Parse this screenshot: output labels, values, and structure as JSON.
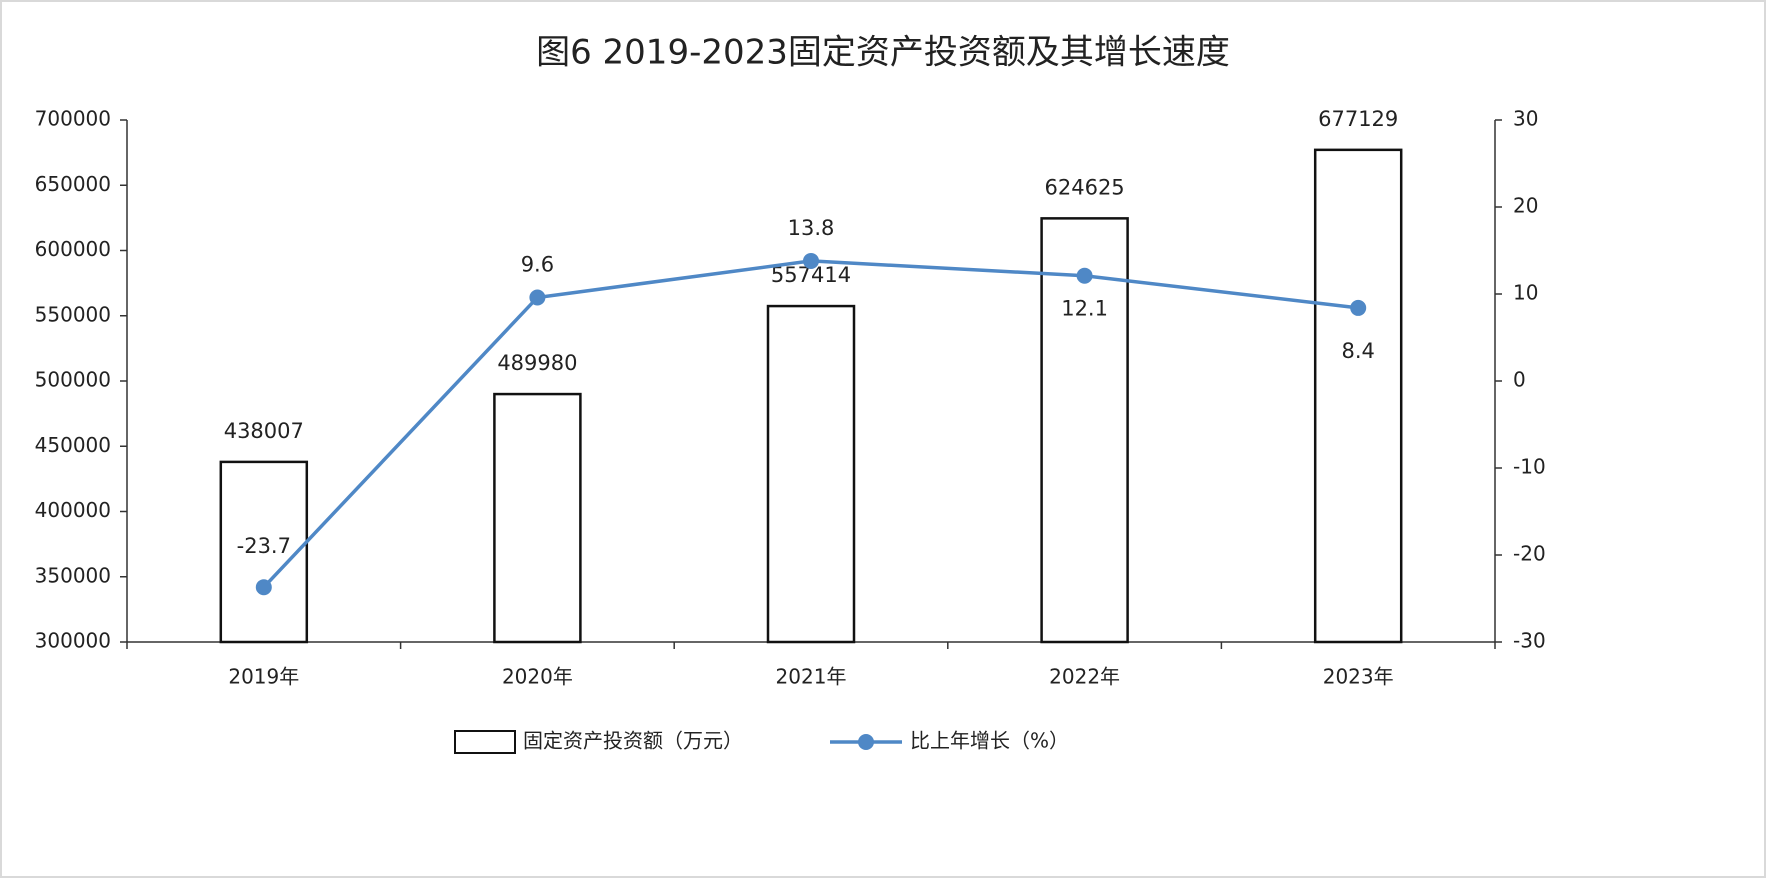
{
  "chart_data": {
    "type": "combo",
    "title": "图6  2019-2023固定资产投资额及其增长速度",
    "categories": [
      "2019年",
      "2020年",
      "2021年",
      "2022年",
      "2023年"
    ],
    "series": [
      {
        "name": "固定资产投资额（万元）",
        "type": "bar",
        "color": "#ffffff",
        "values": [
          438007,
          489980,
          557414,
          624625,
          677129
        ]
      },
      {
        "name": "比上年增长（%）",
        "type": "line",
        "axis": "y2",
        "color": "#4f88c6",
        "values": [
          -23.7,
          9.6,
          13.8,
          12.1,
          8.4
        ]
      }
    ],
    "ylim": [
      300000,
      700000
    ],
    "yticks": [
      300000,
      350000,
      400000,
      450000,
      500000,
      550000,
      600000,
      650000,
      700000
    ],
    "y2lim": [
      -30,
      30
    ],
    "y2ticks": [
      -30,
      -20,
      -10,
      0,
      10,
      20,
      30
    ],
    "grid": false
  }
}
